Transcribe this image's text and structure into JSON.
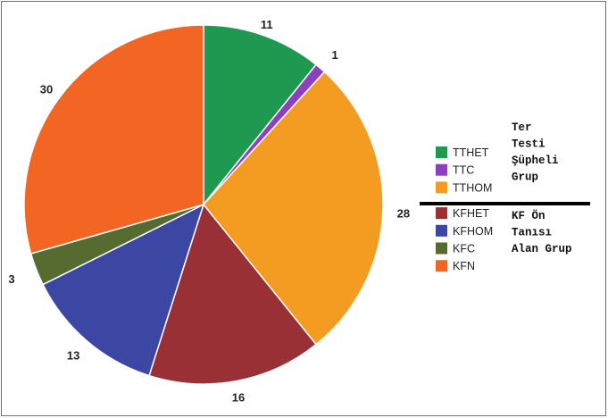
{
  "chart_data": {
    "type": "pie",
    "slices": [
      {
        "label": "TTHET",
        "value": 11,
        "color": "#1f9950"
      },
      {
        "label": "TTC",
        "value": 1,
        "color": "#8c3fbf"
      },
      {
        "label": "TTHOM",
        "value": 28,
        "color": "#f49b22"
      },
      {
        "label": "KFHET",
        "value": 16,
        "color": "#993036"
      },
      {
        "label": "KFHOM",
        "value": 13,
        "color": "#3c47a4"
      },
      {
        "label": "KFC",
        "value": 3,
        "color": "#556b2f"
      },
      {
        "label": "KFN",
        "value": 30,
        "color": "#f26522"
      }
    ],
    "legend": {
      "placement": "right",
      "groups": [
        {
          "label_lines": [
            "Ter",
            "Testi",
            "Şüpheli",
            "Grup"
          ],
          "items": [
            "TTHET",
            "TTC",
            "TTHOM"
          ]
        },
        {
          "label_lines": [
            "KF Ön",
            "Tanısı",
            "Alan Grup"
          ],
          "items": [
            "KFHET",
            "KFHOM",
            "KFC",
            "KFN"
          ]
        }
      ]
    }
  }
}
